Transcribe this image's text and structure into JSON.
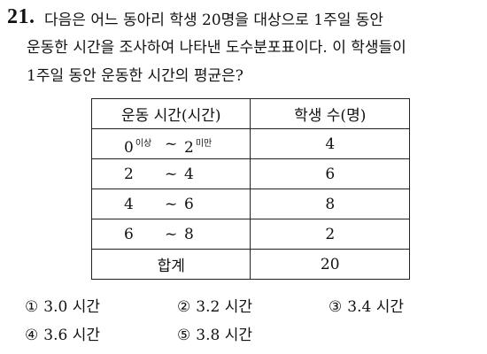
{
  "question": {
    "number": "21.",
    "lines": [
      "다음은 어느 동아리 학생 20명을 대상으로 1주일 동안",
      "운동한 시간을 조사하여 나타낸 도수분포표이다. 이 학생들이",
      "1주일 동안 운동한 시간의 평균은?"
    ]
  },
  "table": {
    "headers": [
      "운동 시간(시간)",
      "학생 수(명)"
    ],
    "rows": [
      {
        "from": "0",
        "from_note": "이상",
        "sep": "~",
        "to": "2",
        "to_note": "미만",
        "count": "4"
      },
      {
        "from": "2",
        "from_note": "",
        "sep": "~",
        "to": "4",
        "to_note": "",
        "count": "6"
      },
      {
        "from": "4",
        "from_note": "",
        "sep": "~",
        "to": "6",
        "to_note": "",
        "count": "8"
      },
      {
        "from": "6",
        "from_note": "",
        "sep": "~",
        "to": "8",
        "to_note": "",
        "count": "2"
      }
    ],
    "total_label": "합계",
    "total_value": "20"
  },
  "options": [
    {
      "mark": "①",
      "text": "3.0 시간"
    },
    {
      "mark": "②",
      "text": "3.2 시간"
    },
    {
      "mark": "③",
      "text": "3.4 시간"
    },
    {
      "mark": "④",
      "text": "3.6 시간"
    },
    {
      "mark": "⑤",
      "text": "3.8 시간"
    }
  ]
}
